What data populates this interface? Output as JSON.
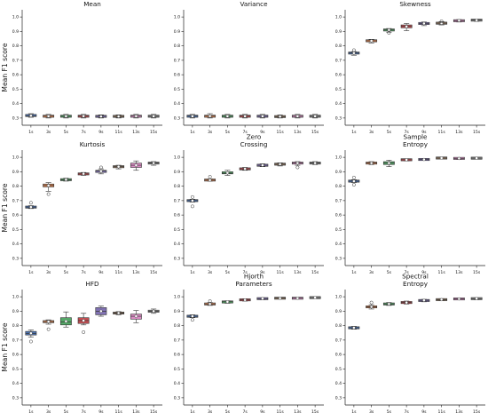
{
  "figure": {
    "ylabel": "Mean F1 score"
  },
  "colors": [
    "#4c72b0",
    "#dd8452",
    "#55a868",
    "#c44e52",
    "#8172b3",
    "#937860",
    "#da8bc3",
    "#8c8c8c"
  ],
  "chart_data": [
    {
      "type": "box",
      "title": "Mean",
      "ylabel": "Mean F1 score",
      "ylim": [
        0.25,
        1.05
      ],
      "yticks": [
        "0.3",
        "0.4",
        "0.5",
        "0.6",
        "0.7",
        "0.8",
        "0.9",
        "1.0"
      ],
      "categories": [
        "1s",
        "3s",
        "5s",
        "7s",
        "9s",
        "11s",
        "13s",
        "15s"
      ],
      "boxes": [
        {
          "min": 0.305,
          "q1": 0.31,
          "median": 0.315,
          "q3": 0.325,
          "max": 0.33,
          "mean": 0.316,
          "outliers": []
        },
        {
          "min": 0.3,
          "q1": 0.305,
          "median": 0.313,
          "q3": 0.32,
          "max": 0.325,
          "mean": 0.312,
          "outliers": []
        },
        {
          "min": 0.3,
          "q1": 0.305,
          "median": 0.312,
          "q3": 0.32,
          "max": 0.325,
          "mean": 0.312,
          "outliers": []
        },
        {
          "min": 0.3,
          "q1": 0.305,
          "median": 0.313,
          "q3": 0.32,
          "max": 0.325,
          "mean": 0.313,
          "outliers": []
        },
        {
          "min": 0.3,
          "q1": 0.305,
          "median": 0.312,
          "q3": 0.318,
          "max": 0.322,
          "mean": 0.311,
          "outliers": []
        },
        {
          "min": 0.3,
          "q1": 0.305,
          "median": 0.311,
          "q3": 0.318,
          "max": 0.322,
          "mean": 0.311,
          "outliers": []
        },
        {
          "min": 0.3,
          "q1": 0.305,
          "median": 0.313,
          "q3": 0.32,
          "max": 0.325,
          "mean": 0.312,
          "outliers": []
        },
        {
          "min": 0.3,
          "q1": 0.305,
          "median": 0.312,
          "q3": 0.32,
          "max": 0.325,
          "mean": 0.312,
          "outliers": []
        }
      ]
    },
    {
      "type": "box",
      "title": "Variance",
      "ylim": [
        0.25,
        1.05
      ],
      "yticks": [
        "0.3",
        "0.4",
        "0.5",
        "0.6",
        "0.7",
        "0.8",
        "0.9",
        "1.0"
      ],
      "categories": [
        "1s",
        "3s",
        "5s",
        "7s",
        "9s",
        "11s",
        "13s",
        "15s"
      ],
      "boxes": [
        {
          "min": 0.3,
          "q1": 0.305,
          "median": 0.313,
          "q3": 0.32,
          "max": 0.325,
          "mean": 0.312,
          "outliers": []
        },
        {
          "min": 0.3,
          "q1": 0.305,
          "median": 0.313,
          "q3": 0.32,
          "max": 0.33,
          "mean": 0.313,
          "outliers": []
        },
        {
          "min": 0.3,
          "q1": 0.305,
          "median": 0.312,
          "q3": 0.32,
          "max": 0.325,
          "mean": 0.312,
          "outliers": []
        },
        {
          "min": 0.3,
          "q1": 0.305,
          "median": 0.313,
          "q3": 0.32,
          "max": 0.325,
          "mean": 0.312,
          "outliers": []
        },
        {
          "min": 0.3,
          "q1": 0.305,
          "median": 0.312,
          "q3": 0.32,
          "max": 0.325,
          "mean": 0.312,
          "outliers": []
        },
        {
          "min": 0.3,
          "q1": 0.304,
          "median": 0.31,
          "q3": 0.316,
          "max": 0.322,
          "mean": 0.31,
          "outliers": []
        },
        {
          "min": 0.3,
          "q1": 0.305,
          "median": 0.312,
          "q3": 0.32,
          "max": 0.325,
          "mean": 0.312,
          "outliers": []
        },
        {
          "min": 0.3,
          "q1": 0.305,
          "median": 0.312,
          "q3": 0.32,
          "max": 0.325,
          "mean": 0.312,
          "outliers": []
        }
      ]
    },
    {
      "type": "box",
      "title": "Skewness",
      "ylim": [
        0.25,
        1.05
      ],
      "yticks": [
        "0.3",
        "0.4",
        "0.5",
        "0.6",
        "0.7",
        "0.8",
        "0.9",
        "1.0"
      ],
      "categories": [
        "1s",
        "3s",
        "5s",
        "7s",
        "9s",
        "11s",
        "13s",
        "15s"
      ],
      "boxes": [
        {
          "min": 0.735,
          "q1": 0.745,
          "median": 0.75,
          "q3": 0.755,
          "max": 0.76,
          "mean": 0.75,
          "outliers": [
            0.77
          ]
        },
        {
          "min": 0.82,
          "q1": 0.83,
          "median": 0.835,
          "q3": 0.84,
          "max": 0.845,
          "mean": 0.835,
          "outliers": []
        },
        {
          "min": 0.895,
          "q1": 0.905,
          "median": 0.91,
          "q3": 0.915,
          "max": 0.92,
          "mean": 0.91,
          "outliers": [
            0.89
          ]
        },
        {
          "min": 0.905,
          "q1": 0.925,
          "median": 0.935,
          "q3": 0.945,
          "max": 0.955,
          "mean": 0.934,
          "outliers": []
        },
        {
          "min": 0.94,
          "q1": 0.95,
          "median": 0.955,
          "q3": 0.96,
          "max": 0.965,
          "mean": 0.955,
          "outliers": []
        },
        {
          "min": 0.945,
          "q1": 0.952,
          "median": 0.957,
          "q3": 0.962,
          "max": 0.968,
          "mean": 0.957,
          "outliers": [
            0.97
          ]
        },
        {
          "min": 0.965,
          "q1": 0.97,
          "median": 0.975,
          "q3": 0.978,
          "max": 0.982,
          "mean": 0.975,
          "outliers": []
        },
        {
          "min": 0.97,
          "q1": 0.975,
          "median": 0.978,
          "q3": 0.981,
          "max": 0.984,
          "mean": 0.978,
          "outliers": []
        }
      ]
    },
    {
      "type": "box",
      "title": "Kurtosis",
      "ylim": [
        0.25,
        1.05
      ],
      "yticks": [
        "0.3",
        "0.4",
        "0.5",
        "0.6",
        "0.7",
        "0.8",
        "0.9",
        "1.0"
      ],
      "categories": [
        "1s",
        "3s",
        "5s",
        "7s",
        "9s",
        "11s",
        "13s",
        "15s"
      ],
      "boxes": [
        {
          "min": 0.645,
          "q1": 0.65,
          "median": 0.655,
          "q3": 0.66,
          "max": 0.665,
          "mean": 0.655,
          "outliers": [
            0.685
          ]
        },
        {
          "min": 0.765,
          "q1": 0.795,
          "median": 0.805,
          "q3": 0.815,
          "max": 0.825,
          "mean": 0.805,
          "outliers": [
            0.745
          ]
        },
        {
          "min": 0.835,
          "q1": 0.84,
          "median": 0.845,
          "q3": 0.85,
          "max": 0.855,
          "mean": 0.845,
          "outliers": []
        },
        {
          "min": 0.875,
          "q1": 0.88,
          "median": 0.885,
          "q3": 0.89,
          "max": 0.895,
          "mean": 0.886,
          "outliers": []
        },
        {
          "min": 0.885,
          "q1": 0.895,
          "median": 0.905,
          "q3": 0.91,
          "max": 0.92,
          "mean": 0.904,
          "outliers": [
            0.93
          ]
        },
        {
          "min": 0.92,
          "q1": 0.93,
          "median": 0.935,
          "q3": 0.94,
          "max": 0.945,
          "mean": 0.935,
          "outliers": []
        },
        {
          "min": 0.91,
          "q1": 0.93,
          "median": 0.945,
          "q3": 0.96,
          "max": 0.975,
          "mean": 0.945,
          "outliers": []
        },
        {
          "min": 0.945,
          "q1": 0.955,
          "median": 0.96,
          "q3": 0.965,
          "max": 0.97,
          "mean": 0.96,
          "outliers": []
        }
      ]
    },
    {
      "type": "box",
      "title": "Zero\nCrossing",
      "ylim": [
        0.25,
        1.05
      ],
      "yticks": [
        "0.3",
        "0.4",
        "0.5",
        "0.6",
        "0.7",
        "0.8",
        "0.9",
        "1.0"
      ],
      "categories": [
        "1s",
        "3s",
        "5s",
        "7s",
        "9s",
        "11s",
        "13s",
        "15s"
      ],
      "boxes": [
        {
          "min": 0.69,
          "q1": 0.695,
          "median": 0.7,
          "q3": 0.705,
          "max": 0.71,
          "mean": 0.7,
          "outliers": [
            0.66,
            0.725
          ]
        },
        {
          "min": 0.835,
          "q1": 0.84,
          "median": 0.842,
          "q3": 0.845,
          "max": 0.85,
          "mean": 0.842,
          "outliers": [
            0.865
          ]
        },
        {
          "min": 0.875,
          "q1": 0.885,
          "median": 0.89,
          "q3": 0.9,
          "max": 0.91,
          "mean": 0.892,
          "outliers": []
        },
        {
          "min": 0.91,
          "q1": 0.915,
          "median": 0.92,
          "q3": 0.925,
          "max": 0.93,
          "mean": 0.92,
          "outliers": []
        },
        {
          "min": 0.935,
          "q1": 0.94,
          "median": 0.945,
          "q3": 0.95,
          "max": 0.955,
          "mean": 0.945,
          "outliers": []
        },
        {
          "min": 0.94,
          "q1": 0.948,
          "median": 0.952,
          "q3": 0.957,
          "max": 0.962,
          "mean": 0.952,
          "outliers": []
        },
        {
          "min": 0.945,
          "q1": 0.955,
          "median": 0.96,
          "q3": 0.965,
          "max": 0.97,
          "mean": 0.96,
          "outliers": [
            0.93
          ]
        },
        {
          "min": 0.95,
          "q1": 0.955,
          "median": 0.96,
          "q3": 0.965,
          "max": 0.97,
          "mean": 0.96,
          "outliers": []
        }
      ]
    },
    {
      "type": "box",
      "title": "Sample\nEntropy",
      "ylim": [
        0.25,
        1.05
      ],
      "yticks": [
        "0.3",
        "0.4",
        "0.5",
        "0.6",
        "0.7",
        "0.8",
        "0.9",
        "1.0"
      ],
      "categories": [
        "1s",
        "3s",
        "5s",
        "7s",
        "9s",
        "11s",
        "13s",
        "15s"
      ],
      "boxes": [
        {
          "min": 0.825,
          "q1": 0.83,
          "median": 0.835,
          "q3": 0.84,
          "max": 0.845,
          "mean": 0.835,
          "outliers": [
            0.81,
            0.86
          ]
        },
        {
          "min": 0.95,
          "q1": 0.955,
          "median": 0.96,
          "q3": 0.965,
          "max": 0.97,
          "mean": 0.96,
          "outliers": []
        },
        {
          "min": 0.935,
          "q1": 0.95,
          "median": 0.96,
          "q3": 0.97,
          "max": 0.98,
          "mean": 0.96,
          "outliers": []
        },
        {
          "min": 0.975,
          "q1": 0.98,
          "median": 0.983,
          "q3": 0.986,
          "max": 0.99,
          "mean": 0.983,
          "outliers": []
        },
        {
          "min": 0.978,
          "q1": 0.982,
          "median": 0.985,
          "q3": 0.988,
          "max": 0.992,
          "mean": 0.985,
          "outliers": []
        },
        {
          "min": 0.99,
          "q1": 0.993,
          "median": 0.995,
          "q3": 0.997,
          "max": 0.999,
          "mean": 0.995,
          "outliers": []
        },
        {
          "min": 0.985,
          "q1": 0.99,
          "median": 0.992,
          "q3": 0.995,
          "max": 0.998,
          "mean": 0.992,
          "outliers": []
        },
        {
          "min": 0.99,
          "q1": 0.992,
          "median": 0.994,
          "q3": 0.996,
          "max": 0.998,
          "mean": 0.994,
          "outliers": []
        }
      ]
    },
    {
      "type": "box",
      "title": "HFD",
      "ylim": [
        0.25,
        1.05
      ],
      "yticks": [
        "0.3",
        "0.4",
        "0.5",
        "0.6",
        "0.7",
        "0.8",
        "0.9",
        "1.0"
      ],
      "categories": [
        "1s",
        "3s",
        "5s",
        "7s",
        "9s",
        "11s",
        "13s",
        "15s"
      ],
      "boxes": [
        {
          "min": 0.72,
          "q1": 0.735,
          "median": 0.745,
          "q3": 0.76,
          "max": 0.77,
          "mean": 0.747,
          "outliers": [
            0.69
          ]
        },
        {
          "min": 0.81,
          "q1": 0.82,
          "median": 0.828,
          "q3": 0.835,
          "max": 0.84,
          "mean": 0.828,
          "outliers": [
            0.775
          ]
        },
        {
          "min": 0.79,
          "q1": 0.805,
          "median": 0.825,
          "q3": 0.855,
          "max": 0.895,
          "mean": 0.83,
          "outliers": []
        },
        {
          "min": 0.805,
          "q1": 0.815,
          "median": 0.835,
          "q3": 0.855,
          "max": 0.885,
          "mean": 0.835,
          "outliers": [
            0.755
          ]
        },
        {
          "min": 0.865,
          "q1": 0.875,
          "median": 0.9,
          "q3": 0.925,
          "max": 0.935,
          "mean": 0.9,
          "outliers": []
        },
        {
          "min": 0.875,
          "q1": 0.882,
          "median": 0.887,
          "q3": 0.892,
          "max": 0.897,
          "mean": 0.887,
          "outliers": []
        },
        {
          "min": 0.82,
          "q1": 0.845,
          "median": 0.865,
          "q3": 0.88,
          "max": 0.905,
          "mean": 0.865,
          "outliers": []
        },
        {
          "min": 0.885,
          "q1": 0.895,
          "median": 0.9,
          "q3": 0.905,
          "max": 0.915,
          "mean": 0.9,
          "outliers": []
        }
      ]
    },
    {
      "type": "box",
      "title": "Hjorth\nParameters",
      "ylim": [
        0.25,
        1.05
      ],
      "yticks": [
        "0.3",
        "0.4",
        "0.5",
        "0.6",
        "0.7",
        "0.8",
        "0.9",
        "1.0"
      ],
      "categories": [
        "1s",
        "3s",
        "5s",
        "7s",
        "9s",
        "11s",
        "13s",
        "15s"
      ],
      "boxes": [
        {
          "min": 0.855,
          "q1": 0.86,
          "median": 0.865,
          "q3": 0.87,
          "max": 0.875,
          "mean": 0.865,
          "outliers": [
            0.84
          ]
        },
        {
          "min": 0.94,
          "q1": 0.945,
          "median": 0.95,
          "q3": 0.955,
          "max": 0.96,
          "mean": 0.95,
          "outliers": [
            0.97
          ]
        },
        {
          "min": 0.955,
          "q1": 0.96,
          "median": 0.965,
          "q3": 0.968,
          "max": 0.972,
          "mean": 0.965,
          "outliers": []
        },
        {
          "min": 0.97,
          "q1": 0.975,
          "median": 0.978,
          "q3": 0.982,
          "max": 0.986,
          "mean": 0.978,
          "outliers": []
        },
        {
          "min": 0.98,
          "q1": 0.984,
          "median": 0.987,
          "q3": 0.99,
          "max": 0.993,
          "mean": 0.987,
          "outliers": []
        },
        {
          "min": 0.985,
          "q1": 0.988,
          "median": 0.99,
          "q3": 0.992,
          "max": 0.995,
          "mean": 0.99,
          "outliers": []
        },
        {
          "min": 0.985,
          "q1": 0.988,
          "median": 0.99,
          "q3": 0.992,
          "max": 0.995,
          "mean": 0.99,
          "outliers": []
        },
        {
          "min": 0.99,
          "q1": 0.992,
          "median": 0.994,
          "q3": 0.996,
          "max": 0.998,
          "mean": 0.994,
          "outliers": []
        }
      ]
    },
    {
      "type": "box",
      "title": "Spectral\nEntropy",
      "ylim": [
        0.25,
        1.05
      ],
      "yticks": [
        "0.3",
        "0.4",
        "0.5",
        "0.6",
        "0.7",
        "0.8",
        "0.9",
        "1.0"
      ],
      "categories": [
        "1s",
        "3s",
        "5s",
        "7s",
        "9s",
        "11s",
        "13s",
        "15s"
      ],
      "boxes": [
        {
          "min": 0.775,
          "q1": 0.78,
          "median": 0.785,
          "q3": 0.79,
          "max": 0.795,
          "mean": 0.785,
          "outliers": []
        },
        {
          "min": 0.915,
          "q1": 0.925,
          "median": 0.93,
          "q3": 0.935,
          "max": 0.945,
          "mean": 0.93,
          "outliers": [
            0.96
          ]
        },
        {
          "min": 0.94,
          "q1": 0.945,
          "median": 0.95,
          "q3": 0.955,
          "max": 0.96,
          "mean": 0.95,
          "outliers": []
        },
        {
          "min": 0.95,
          "q1": 0.955,
          "median": 0.96,
          "q3": 0.965,
          "max": 0.97,
          "mean": 0.96,
          "outliers": []
        },
        {
          "min": 0.965,
          "q1": 0.97,
          "median": 0.975,
          "q3": 0.978,
          "max": 0.982,
          "mean": 0.975,
          "outliers": []
        },
        {
          "min": 0.972,
          "q1": 0.977,
          "median": 0.98,
          "q3": 0.983,
          "max": 0.987,
          "mean": 0.98,
          "outliers": []
        },
        {
          "min": 0.978,
          "q1": 0.982,
          "median": 0.985,
          "q3": 0.988,
          "max": 0.991,
          "mean": 0.985,
          "outliers": []
        },
        {
          "min": 0.98,
          "q1": 0.984,
          "median": 0.987,
          "q3": 0.99,
          "max": 0.993,
          "mean": 0.987,
          "outliers": []
        }
      ]
    }
  ]
}
